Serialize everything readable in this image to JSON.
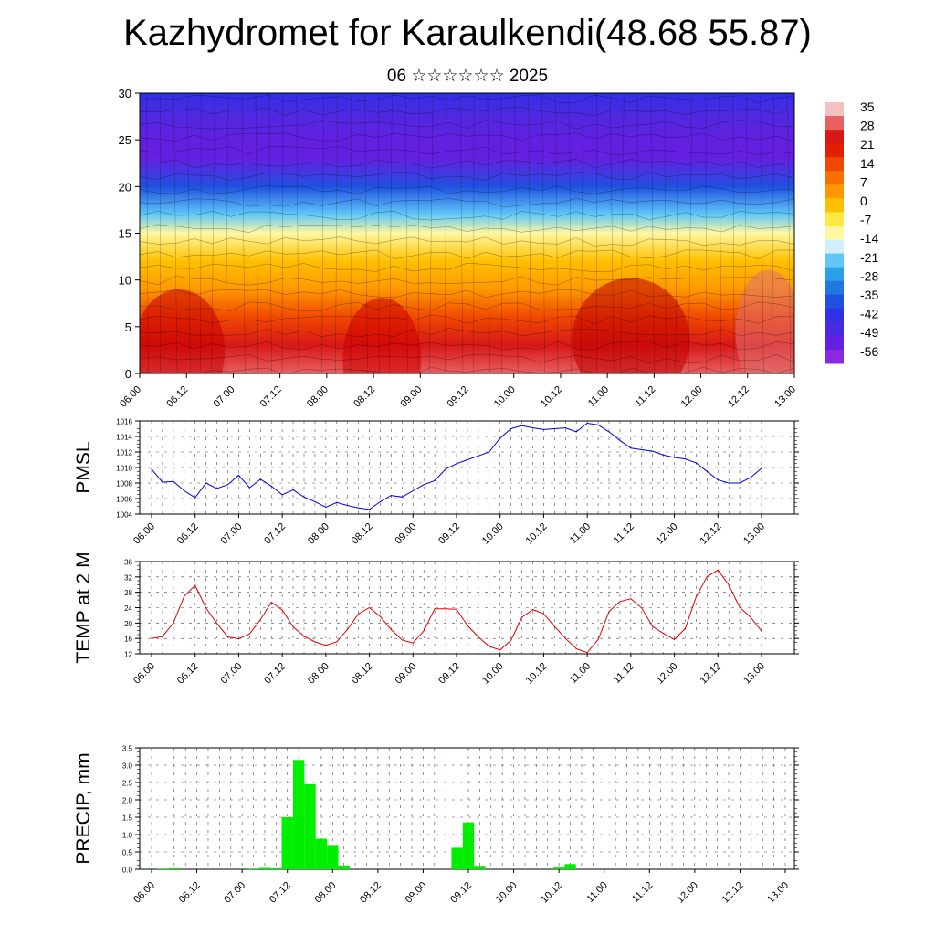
{
  "title": "Kazhydromet for Karaulkendi(48.68 55.87)",
  "subtitle": "06 ☆☆☆☆☆☆ 2025",
  "time_labels": [
    "06.00",
    "06.12",
    "07.00",
    "07.12",
    "08.00",
    "08.12",
    "09.00",
    "09.12",
    "10.00",
    "10.12",
    "11.00",
    "11.12",
    "12.00",
    "12.12",
    "13.00"
  ],
  "chart_data": [
    {
      "type": "heatmap",
      "name": "cross-section",
      "x": [
        "06.00",
        "06.12",
        "07.00",
        "07.12",
        "08.00",
        "08.12",
        "09.00",
        "09.12",
        "10.00",
        "10.12",
        "11.00",
        "11.12",
        "12.00",
        "12.12",
        "13.00"
      ],
      "ylim": [
        0,
        30
      ],
      "yticks": [
        0,
        5,
        10,
        15,
        20,
        25,
        30
      ],
      "colorbar_labels": [
        "35",
        "28",
        "21",
        "14",
        "7",
        "0",
        "-7",
        "-14",
        "-21",
        "-28",
        "-35",
        "-42",
        "-49",
        "-56"
      ],
      "colorbar_colors": [
        "#f4c0c0",
        "#e86060",
        "#d81818",
        "#e02000",
        "#f04800",
        "#f87000",
        "#ff9800",
        "#ffc000",
        "#ffe840",
        "#fff8a0",
        "#d0f0ff",
        "#60c8f8",
        "#2aa0e8",
        "#1f78e0",
        "#2050e0",
        "#3030e8",
        "#4a2ae0",
        "#6420e0",
        "#8a2ae0"
      ],
      "profile": [
        {
          "alt": 0,
          "temp": 30
        },
        {
          "alt": 3,
          "temp": 25
        },
        {
          "alt": 6,
          "temp": 15
        },
        {
          "alt": 9,
          "temp": 7
        },
        {
          "alt": 12,
          "temp": 0
        },
        {
          "alt": 15,
          "temp": -10
        },
        {
          "alt": 17,
          "temp": -20
        },
        {
          "alt": 20,
          "temp": -38
        },
        {
          "alt": 23,
          "temp": -54
        },
        {
          "alt": 25,
          "temp": -52
        },
        {
          "alt": 28,
          "temp": -45
        },
        {
          "alt": 30,
          "temp": -42
        }
      ]
    },
    {
      "type": "line",
      "name": "pmsl",
      "ylabel": "PMSL",
      "ylim": [
        1004,
        1016
      ],
      "yticks": [
        1004,
        1006,
        1008,
        1010,
        1012,
        1014,
        1016
      ],
      "color": "#0000e0",
      "x": [
        "06.00",
        "06.03",
        "06.06",
        "06.09",
        "06.12",
        "06.15",
        "06.18",
        "06.21",
        "07.00",
        "07.03",
        "07.06",
        "07.09",
        "07.12",
        "07.15",
        "07.18",
        "07.21",
        "08.00",
        "08.03",
        "08.06",
        "08.09",
        "08.12",
        "08.15",
        "08.18",
        "08.21",
        "09.00",
        "09.03",
        "09.06",
        "09.09",
        "09.12",
        "09.15",
        "09.18",
        "09.21",
        "10.00",
        "10.03",
        "10.06",
        "10.09",
        "10.12",
        "10.15",
        "10.18",
        "10.21",
        "11.00",
        "11.03",
        "11.06",
        "11.09",
        "11.12",
        "11.15",
        "11.18",
        "11.21",
        "12.00",
        "12.03",
        "12.06",
        "12.09",
        "12.12",
        "12.15",
        "12.18",
        "12.21",
        "13.00"
      ],
      "values": [
        1009.8,
        1008.1,
        1008.2,
        1007.0,
        1006.1,
        1008.0,
        1007.3,
        1007.8,
        1009.0,
        1007.4,
        1008.5,
        1007.6,
        1006.5,
        1007.1,
        1006.2,
        1005.6,
        1004.9,
        1005.5,
        1005.1,
        1004.8,
        1004.6,
        1005.6,
        1006.4,
        1006.2,
        1007.0,
        1007.8,
        1008.3,
        1009.8,
        1010.5,
        1011.0,
        1011.5,
        1012.0,
        1013.8,
        1015.0,
        1015.4,
        1015.1,
        1014.9,
        1015.0,
        1015.1,
        1014.6,
        1015.7,
        1015.5,
        1014.6,
        1013.5,
        1012.5,
        1012.3,
        1012.1,
        1011.6,
        1011.3,
        1011.1,
        1010.6,
        1009.5,
        1008.4,
        1008.0,
        1008.0,
        1008.7,
        1009.9
      ]
    },
    {
      "type": "line",
      "name": "temp2m",
      "ylabel": "TEMP at 2 M",
      "ylim": [
        12,
        36
      ],
      "yticks": [
        12,
        16,
        20,
        24,
        28,
        32,
        36
      ],
      "color": "#e00000",
      "x": [
        "06.00",
        "06.03",
        "06.06",
        "06.09",
        "06.12",
        "06.15",
        "06.18",
        "06.21",
        "07.00",
        "07.03",
        "07.06",
        "07.09",
        "07.12",
        "07.15",
        "07.18",
        "07.21",
        "08.00",
        "08.03",
        "08.06",
        "08.09",
        "08.12",
        "08.15",
        "08.18",
        "08.21",
        "09.00",
        "09.03",
        "09.06",
        "09.09",
        "09.12",
        "09.15",
        "09.18",
        "09.21",
        "10.00",
        "10.03",
        "10.06",
        "10.09",
        "10.12",
        "10.15",
        "10.18",
        "10.21",
        "11.00",
        "11.03",
        "11.06",
        "11.09",
        "11.12",
        "11.15",
        "11.18",
        "11.21",
        "12.00",
        "12.03",
        "12.06",
        "12.09",
        "12.12",
        "12.15",
        "12.18",
        "12.21",
        "13.00"
      ],
      "values": [
        16.0,
        16.5,
        20.0,
        27.0,
        29.8,
        23.9,
        19.9,
        16.4,
        15.9,
        17.2,
        20.9,
        25.4,
        23.4,
        19.0,
        16.6,
        15.1,
        14.2,
        15.1,
        18.4,
        22.4,
        24.0,
        21.7,
        18.3,
        15.6,
        14.8,
        18.0,
        23.7,
        23.7,
        23.6,
        19.4,
        16.4,
        13.9,
        13.0,
        15.5,
        21.5,
        23.5,
        22.4,
        19.1,
        16.0,
        13.3,
        12.3,
        15.7,
        23.0,
        25.6,
        26.3,
        23.9,
        19.1,
        17.3,
        15.7,
        18.6,
        26.8,
        32.1,
        33.8,
        29.9,
        24.1,
        21.5,
        17.9
      ]
    },
    {
      "type": "bar",
      "name": "precip",
      "ylabel": "PRECIP, mm",
      "ylim": [
        0,
        3.5
      ],
      "yticks": [
        "0.0",
        "0.5",
        "1.0",
        "1.5",
        "2.0",
        "2.5",
        "3.0",
        "3.5"
      ],
      "color": "#00ee00",
      "x": [
        "06.00",
        "06.03",
        "06.06",
        "06.09",
        "06.12",
        "06.15",
        "06.18",
        "06.21",
        "07.00",
        "07.03",
        "07.06",
        "07.09",
        "07.12",
        "07.15",
        "07.18",
        "07.21",
        "08.00",
        "08.03",
        "08.06",
        "08.09",
        "08.12",
        "08.15",
        "08.18",
        "08.21",
        "09.00",
        "09.03",
        "09.06",
        "09.09",
        "09.12",
        "09.15",
        "09.18",
        "09.21",
        "10.00",
        "10.03",
        "10.06",
        "10.09",
        "10.12",
        "10.15",
        "10.18",
        "10.21",
        "11.00",
        "11.03",
        "11.06",
        "11.09",
        "11.12",
        "11.15",
        "11.18",
        "11.21",
        "12.00",
        "12.03",
        "12.06",
        "12.09",
        "12.12",
        "12.15",
        "12.18",
        "12.21",
        "13.00"
      ],
      "values": [
        0,
        0.02,
        0.03,
        0,
        0,
        0,
        0,
        0,
        0,
        0.02,
        0.04,
        0.03,
        1.5,
        3.15,
        2.45,
        0.88,
        0.7,
        0.11,
        0,
        0,
        0,
        0,
        0,
        0,
        0,
        0,
        0,
        0.62,
        1.35,
        0.1,
        0,
        0,
        0,
        0,
        0,
        0,
        0.05,
        0.15,
        0,
        0,
        0,
        0,
        0,
        0,
        0,
        0,
        0,
        0,
        0,
        0,
        0,
        0,
        0,
        0,
        0,
        0,
        0
      ]
    }
  ]
}
